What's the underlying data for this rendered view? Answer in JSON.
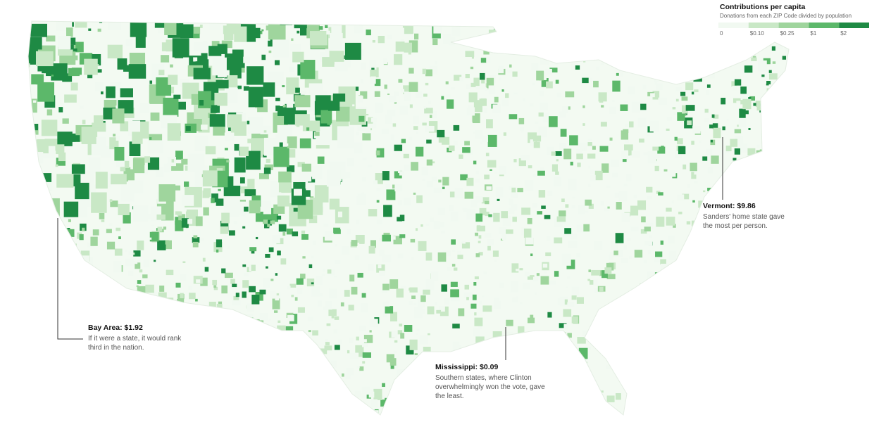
{
  "legend": {
    "title": "Contributions per capita",
    "subtitle": "Donations from each ZIP Code divided by population",
    "labels": [
      "0",
      "$0.10",
      "$0.25",
      "$1",
      "$2"
    ],
    "colors": [
      "#f1f9f1",
      "#c9e8c6",
      "#9fd59d",
      "#5cb86a",
      "#1e8a44"
    ]
  },
  "annotations": [
    {
      "title": "Vermont: $9.86",
      "lines": [
        "Sanders' home state gave",
        "the most per person."
      ]
    },
    {
      "title": "Bay Area: $1.92",
      "lines": [
        "If it were a state, it would rank",
        "third in the nation."
      ]
    },
    {
      "title": "Mississippi: $0.09",
      "lines": [
        "Southern states, where Clinton",
        "overwhelmingly won the vote, gave",
        "the least."
      ]
    }
  ]
}
